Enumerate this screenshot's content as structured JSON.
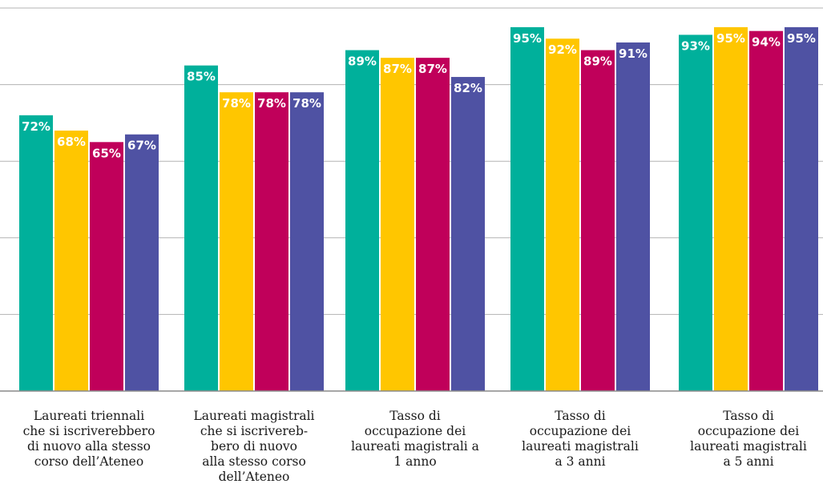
{
  "chart_data": {
    "type": "bar",
    "title": "",
    "xlabel": "",
    "ylabel": "",
    "ylim": [
      0,
      100
    ],
    "grid": true,
    "legend": "none",
    "categories": [
      [
        "Laureati triennali",
        "che si iscriverebbero",
        "di nuovo alla stesso",
        "corso dell’Ateneo"
      ],
      [
        "Laureati magistrali",
        "che si iscrivereb-",
        "bero di nuovo",
        "alla stesso corso",
        "dell’Ateneo"
      ],
      [
        "Tasso di",
        "occupazione dei",
        "laureati magistrali a",
        "1 anno"
      ],
      [
        "Tasso di",
        "occupazione dei",
        "laureati magistrali",
        "a 3 anni"
      ],
      [
        "Tasso di",
        "occupazione dei",
        "laureati magistrali",
        "a 5 anni"
      ]
    ],
    "series": [
      {
        "color": "#00b09b",
        "values": [
          72,
          85,
          89,
          95,
          93
        ]
      },
      {
        "color": "#ffc600",
        "values": [
          68,
          78,
          87,
          92,
          95
        ]
      },
      {
        "color": "#c0005a",
        "values": [
          65,
          78,
          87,
          89,
          94
        ]
      },
      {
        "color": "#4f52a3",
        "values": [
          67,
          78,
          82,
          91,
          95
        ]
      }
    ],
    "value_suffix": "%"
  }
}
